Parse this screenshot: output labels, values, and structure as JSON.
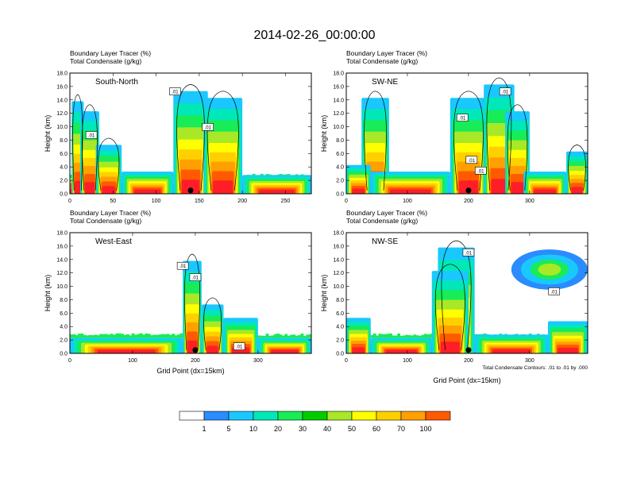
{
  "title": "2014-02-26_00:00:00",
  "colors": {
    "levels": [
      "#ffffff",
      "#2a8cff",
      "#19c8ff",
      "#00e8b8",
      "#18ec56",
      "#00cc00",
      "#a8e826",
      "#ffff00",
      "#ffd000",
      "#ffa000",
      "#ff5a00",
      "#ff1e28"
    ],
    "frame": "#000000",
    "contour": "#000000"
  },
  "chart_data": [
    {
      "type": "heatmap",
      "name": "South-North",
      "header": [
        "Boundary Layer Tracer   (%)",
        "Total Condensate   (g/kg)"
      ],
      "ylabel": "Height (km)",
      "xlabel": "",
      "xlim": [
        0,
        280
      ],
      "ylim": [
        0,
        18
      ],
      "xticks": [
        0,
        50,
        100,
        150,
        200,
        250
      ],
      "yticks": [
        "0.0",
        "2.0",
        "4.0",
        "6.0",
        "8.0",
        "10.0",
        "12.0",
        "14.0",
        "16.0",
        "18.0"
      ],
      "marker_x": 140,
      "contour_labels": [
        {
          "text": ".01",
          "x": 122,
          "y": 15.2
        },
        {
          "text": ".01",
          "x": 160,
          "y": 9.9
        },
        {
          "text": ".01",
          "x": 25,
          "y": 8.7
        }
      ],
      "columns": [
        {
          "x0": 2,
          "x1": 16,
          "ytop": 13.5
        },
        {
          "x0": 12,
          "x1": 34,
          "ytop": 12.0
        },
        {
          "x0": 30,
          "x1": 60,
          "ytop": 7.0
        },
        {
          "x0": 120,
          "x1": 160,
          "ytop": 15.0
        },
        {
          "x0": 155,
          "x1": 200,
          "ytop": 14.0
        },
        {
          "x0": 60,
          "x1": 120,
          "ytop": 3.0
        },
        {
          "x0": 200,
          "x1": 280,
          "ytop": 2.5
        }
      ]
    },
    {
      "type": "heatmap",
      "name": "SW-NE",
      "header": [
        "Boundary Layer Tracer   (%)",
        "Total Condensate   (g/kg)"
      ],
      "ylabel": "Height (km)",
      "xlabel": "",
      "xlim": [
        0,
        395
      ],
      "ylim": [
        0,
        18
      ],
      "xticks": [
        0,
        100,
        200,
        300
      ],
      "yticks": [
        "0.0",
        "2.0",
        "4.0",
        "6.0",
        "8.0",
        "10.0",
        "12.0",
        "14.0",
        "16.0",
        "18.0"
      ],
      "marker_x": 200,
      "contour_labels": [
        {
          "text": ".01",
          "x": 260,
          "y": 15.2
        },
        {
          "text": ".01",
          "x": 190,
          "y": 11.3
        },
        {
          "text": ".01",
          "x": 205,
          "y": 5.0
        },
        {
          "text": ".01",
          "x": 220,
          "y": 3.4
        }
      ],
      "columns": [
        {
          "x0": 25,
          "x1": 70,
          "ytop": 14.0
        },
        {
          "x0": 170,
          "x1": 230,
          "ytop": 14.0
        },
        {
          "x0": 225,
          "x1": 275,
          "ytop": 16.0
        },
        {
          "x0": 260,
          "x1": 300,
          "ytop": 12.0
        },
        {
          "x0": 0,
          "x1": 40,
          "ytop": 4.0
        },
        {
          "x0": 360,
          "x1": 395,
          "ytop": 6.0
        },
        {
          "x0": 40,
          "x1": 170,
          "ytop": 3.0
        },
        {
          "x0": 290,
          "x1": 360,
          "ytop": 3.0
        }
      ]
    },
    {
      "type": "heatmap",
      "name": "West-East",
      "header": [
        "Boundary Layer Tracer   (%)",
        "Total Condensate   (g/kg)"
      ],
      "ylabel": "Height (km)",
      "xlabel": "Grid Point (dx=15km)",
      "xlim": [
        0,
        385
      ],
      "ylim": [
        0,
        18
      ],
      "xticks": [
        0,
        100,
        200,
        300
      ],
      "yticks": [
        "0.0",
        "2.0",
        "4.0",
        "6.0",
        "8.0",
        "10.0",
        "12.0",
        "14.0",
        "16.0",
        "18.0"
      ],
      "marker_x": 200,
      "contour_labels": [
        {
          "text": ".01",
          "x": 180,
          "y": 13.0
        },
        {
          "text": ".01",
          "x": 200,
          "y": 11.3
        },
        {
          "text": ".01",
          "x": 270,
          "y": 1.0
        }
      ],
      "columns": [
        {
          "x0": 180,
          "x1": 210,
          "ytop": 13.5
        },
        {
          "x0": 210,
          "x1": 245,
          "ytop": 7.0
        },
        {
          "x0": 245,
          "x1": 300,
          "ytop": 5.0
        },
        {
          "x0": 0,
          "x1": 180,
          "ytop": 2.0
        },
        {
          "x0": 300,
          "x1": 385,
          "ytop": 2.0
        }
      ]
    },
    {
      "type": "heatmap",
      "name": "NW-SE",
      "header": [
        "Boundary Layer Tracer   (%)",
        "Total Condensate   (g/kg)"
      ],
      "ylabel": "Height (km)",
      "xlabel": "Grid Point (dx=15km)",
      "xlim": [
        0,
        395
      ],
      "ylim": [
        0,
        18
      ],
      "xticks": [
        0,
        100,
        200,
        300
      ],
      "yticks": [
        "0.0",
        "2.0",
        "4.0",
        "6.0",
        "8.0",
        "10.0",
        "12.0",
        "14.0",
        "16.0",
        "18.0"
      ],
      "marker_x": 200,
      "note": "Total Condensate Contours: .01 to .01 by .000",
      "contour_labels": [
        {
          "text": ".01",
          "x": 200,
          "y": 15.0
        },
        {
          "text": ".01",
          "x": 340,
          "y": 9.2
        }
      ],
      "columns": [
        {
          "x0": 150,
          "x1": 210,
          "ytop": 15.5
        },
        {
          "x0": 140,
          "x1": 200,
          "ytop": 12.0
        },
        {
          "x0": 0,
          "x1": 40,
          "ytop": 5.0
        },
        {
          "x0": 330,
          "x1": 395,
          "ytop": 4.5
        },
        {
          "x0": 40,
          "x1": 140,
          "ytop": 2.0
        },
        {
          "x0": 210,
          "x1": 330,
          "ytop": 2.5
        }
      ],
      "anvil": {
        "x0": 270,
        "x1": 395,
        "y0": 9.5,
        "y1": 15.5
      }
    }
  ],
  "colorbar": {
    "labels": [
      "1",
      "5",
      "10",
      "20",
      "30",
      "40",
      "50",
      "60",
      "70",
      "100"
    ]
  }
}
